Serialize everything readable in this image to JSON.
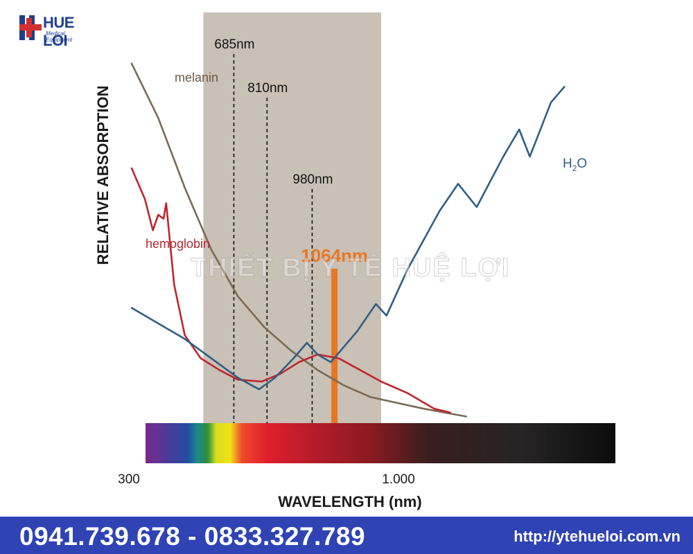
{
  "brand": {
    "logo_text": "HUE LOI",
    "logo_sub": "Medical Equipment",
    "watermark": "THIẾT BỊ Y TẾ HUỆ LỢI"
  },
  "footer": {
    "phones": "0941.739.678 - 0833.327.789",
    "website": "http://ytehueloi.com.vn"
  },
  "colors": {
    "melanin": "#7a6a55",
    "hemoglobin": "#c0252e",
    "water": "#2f5e82",
    "highlight": "#e87722",
    "band": "#c9c0b6",
    "footer_bg": "#2f43b5"
  },
  "chart_data": {
    "type": "line",
    "xlabel": "WAVELENGTH (nm)",
    "ylabel": "RELATIVE ABSORPTION",
    "x_ticks": [
      "300",
      "1.000"
    ],
    "shaded_band_nm": [
      570,
      1240
    ],
    "markers": [
      {
        "label": "685nm",
        "x": 685,
        "style": "dashed"
      },
      {
        "label": "810nm",
        "x": 810,
        "style": "dashed"
      },
      {
        "label": "980nm",
        "x": 980,
        "style": "dashed"
      },
      {
        "label": "1064nm",
        "x": 1064,
        "style": "highlight"
      }
    ],
    "series": [
      {
        "name": "melanin",
        "points": [
          [
            300,
            0.92
          ],
          [
            400,
            0.78
          ],
          [
            500,
            0.6
          ],
          [
            600,
            0.44
          ],
          [
            700,
            0.32
          ],
          [
            800,
            0.24
          ],
          [
            900,
            0.18
          ],
          [
            1000,
            0.13
          ],
          [
            1100,
            0.09
          ],
          [
            1200,
            0.06
          ],
          [
            1400,
            0.03
          ],
          [
            1560,
            0.01
          ]
        ]
      },
      {
        "name": "hemoglobin",
        "points": [
          [
            300,
            0.65
          ],
          [
            350,
            0.57
          ],
          [
            380,
            0.49
          ],
          [
            400,
            0.53
          ],
          [
            420,
            0.52
          ],
          [
            430,
            0.56
          ],
          [
            460,
            0.35
          ],
          [
            500,
            0.22
          ],
          [
            560,
            0.16
          ],
          [
            630,
            0.13
          ],
          [
            700,
            0.105
          ],
          [
            790,
            0.1
          ],
          [
            860,
            0.12
          ],
          [
            930,
            0.15
          ],
          [
            1000,
            0.17
          ],
          [
            1080,
            0.16
          ],
          [
            1160,
            0.13
          ],
          [
            1240,
            0.1
          ],
          [
            1340,
            0.07
          ],
          [
            1440,
            0.03
          ],
          [
            1500,
            0.02
          ]
        ]
      },
      {
        "name": "H2O",
        "points": [
          [
            300,
            0.29
          ],
          [
            400,
            0.25
          ],
          [
            500,
            0.21
          ],
          [
            600,
            0.16
          ],
          [
            700,
            0.11
          ],
          [
            780,
            0.08
          ],
          [
            840,
            0.11
          ],
          [
            910,
            0.16
          ],
          [
            960,
            0.2
          ],
          [
            1000,
            0.17
          ],
          [
            1050,
            0.15
          ],
          [
            1150,
            0.23
          ],
          [
            1220,
            0.3
          ],
          [
            1260,
            0.27
          ],
          [
            1340,
            0.39
          ],
          [
            1460,
            0.54
          ],
          [
            1530,
            0.61
          ],
          [
            1600,
            0.55
          ],
          [
            1700,
            0.68
          ],
          [
            1760,
            0.75
          ],
          [
            1800,
            0.68
          ],
          [
            1880,
            0.82
          ],
          [
            1930,
            0.86
          ]
        ]
      }
    ],
    "series_labels": {
      "melanin": "melanin",
      "hemoglobin": "hemoglobin",
      "water_main": "H",
      "water_sub": "2",
      "water_end": "O"
    },
    "spectrum_bar": true,
    "grid": false,
    "legend": "inline labels"
  }
}
